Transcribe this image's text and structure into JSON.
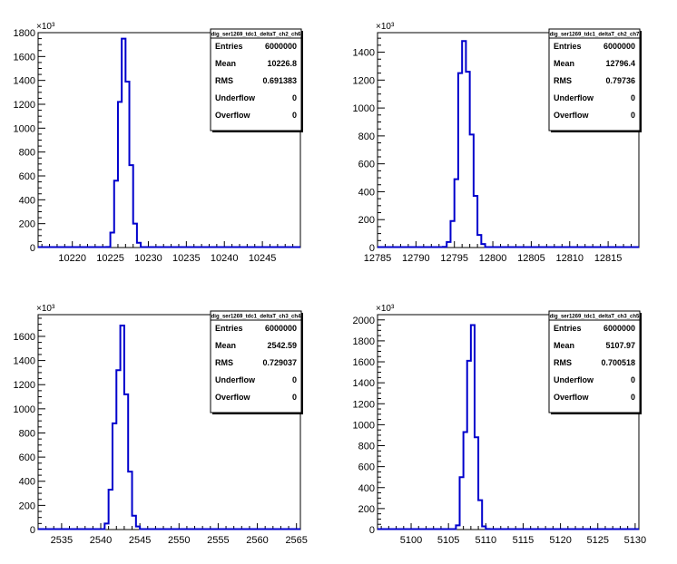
{
  "chart_data": [
    {
      "type": "histogram",
      "stats": {
        "title": "dig_ser1269_tdc1_deltaT_ch2_ch6",
        "rows": [
          {
            "label": "Entries",
            "value": "6000000"
          },
          {
            "label": "Mean",
            "value": "10226.8"
          },
          {
            "label": "RMS",
            "value": "0.691383"
          },
          {
            "label": "Underflow",
            "value": "0"
          },
          {
            "label": "Overflow",
            "value": "0"
          }
        ]
      },
      "y_multiplier": "×10³",
      "xlim": [
        10215.5,
        10250
      ],
      "ylim": [
        0,
        1800
      ],
      "xticks": [
        10220,
        10225,
        10230,
        10235,
        10240,
        10245
      ],
      "yticks": [
        0,
        200,
        400,
        600,
        800,
        1000,
        1200,
        1400,
        1600,
        1800
      ],
      "bin_width": 0.5,
      "bins_x": [
        10224.5,
        10225.0,
        10225.5,
        10226.0,
        10226.5,
        10227.0,
        10227.5,
        10228.0,
        10228.5
      ],
      "bins_y": [
        5,
        125,
        560,
        1220,
        1750,
        1390,
        690,
        200,
        40
      ]
    },
    {
      "type": "histogram",
      "stats": {
        "title": "dig_ser1269_tdc1_deltaT_ch2_ch7",
        "rows": [
          {
            "label": "Entries",
            "value": "6000000"
          },
          {
            "label": "Mean",
            "value": "12796.4"
          },
          {
            "label": "RMS",
            "value": "0.79736"
          },
          {
            "label": "Underflow",
            "value": "0"
          },
          {
            "label": "Overflow",
            "value": "0"
          }
        ]
      },
      "y_multiplier": "×10³",
      "xlim": [
        12785,
        12819
      ],
      "ylim": [
        0,
        1540
      ],
      "xticks": [
        12785,
        12790,
        12795,
        12800,
        12805,
        12810,
        12815
      ],
      "yticks": [
        0,
        200,
        400,
        600,
        800,
        1000,
        1200,
        1400
      ],
      "bin_width": 0.5,
      "bins_x": [
        12793.5,
        12794.0,
        12794.5,
        12795.0,
        12795.5,
        12796.0,
        12796.5,
        12797.0,
        12797.5,
        12798.0,
        12798.5
      ],
      "bins_y": [
        5,
        40,
        190,
        490,
        1250,
        1480,
        1260,
        810,
        370,
        90,
        25
      ]
    },
    {
      "type": "histogram",
      "stats": {
        "title": "dig_ser1269_tdc1_deltaT_ch3_ch4",
        "rows": [
          {
            "label": "Entries",
            "value": "6000000"
          },
          {
            "label": "Mean",
            "value": "2542.59"
          },
          {
            "label": "RMS",
            "value": "0.729037"
          },
          {
            "label": "Underflow",
            "value": "0"
          },
          {
            "label": "Overflow",
            "value": "0"
          }
        ]
      },
      "y_multiplier": "×10³",
      "xlim": [
        2532,
        2565.5
      ],
      "ylim": [
        0,
        1780
      ],
      "xticks": [
        2535,
        2540,
        2545,
        2550,
        2555,
        2560,
        2565
      ],
      "yticks": [
        0,
        200,
        400,
        600,
        800,
        1000,
        1200,
        1400,
        1600
      ],
      "bin_width": 0.5,
      "bins_x": [
        2540.5,
        2541.0,
        2541.5,
        2542.0,
        2542.5,
        2543.0,
        2543.5,
        2544.0,
        2544.5
      ],
      "bins_y": [
        50,
        330,
        880,
        1320,
        1690,
        1120,
        480,
        115,
        25
      ]
    },
    {
      "type": "histogram",
      "stats": {
        "title": "dig_ser1269_tdc1_deltaT_ch3_ch5",
        "rows": [
          {
            "label": "Entries",
            "value": "6000000"
          },
          {
            "label": "Mean",
            "value": "5107.97"
          },
          {
            "label": "RMS",
            "value": "0.700518"
          },
          {
            "label": "Underflow",
            "value": "0"
          },
          {
            "label": "Overflow",
            "value": "0"
          }
        ]
      },
      "y_multiplier": "×10³",
      "xlim": [
        5095.5,
        5130.5
      ],
      "ylim": [
        0,
        2050
      ],
      "xticks": [
        5100,
        5105,
        5110,
        5115,
        5120,
        5125,
        5130
      ],
      "yticks": [
        0,
        200,
        400,
        600,
        800,
        1000,
        1200,
        1400,
        1600,
        1800,
        2000
      ],
      "bin_width": 0.5,
      "bins_x": [
        5106.0,
        5106.5,
        5107.0,
        5107.5,
        5108.0,
        5108.5,
        5109.0,
        5109.5,
        5110.0
      ],
      "bins_y": [
        40,
        500,
        930,
        1610,
        1950,
        880,
        280,
        30,
        5
      ]
    }
  ]
}
